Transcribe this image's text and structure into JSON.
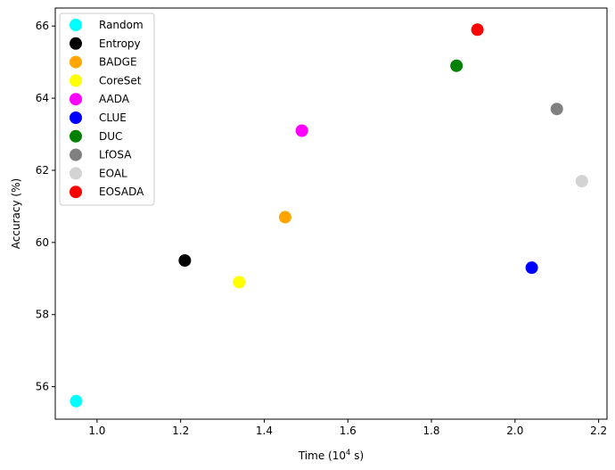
{
  "chart_data": {
    "type": "scatter",
    "title": "",
    "xlabel_prefix": "Time (10",
    "xlabel_sup": "4",
    "xlabel_suffix": " s)",
    "ylabel": "Accuracy (%)",
    "xlim": [
      0.9,
      2.22
    ],
    "ylim": [
      55.1,
      66.5
    ],
    "xticks": [
      1.0,
      1.2,
      1.4,
      1.6,
      1.8,
      2.0,
      2.2
    ],
    "xtick_labels": [
      "1.0",
      "1.2",
      "1.4",
      "1.6",
      "1.8",
      "2.0",
      "2.2"
    ],
    "yticks": [
      56,
      58,
      60,
      62,
      64,
      66
    ],
    "ytick_labels": [
      "56",
      "58",
      "60",
      "62",
      "64",
      "66"
    ],
    "grid": false,
    "legend_position": "top-left",
    "series": [
      {
        "name": "Random",
        "color": "#00ffff",
        "x": 0.95,
        "y": 55.6
      },
      {
        "name": "Entropy",
        "color": "#000000",
        "x": 1.21,
        "y": 59.5
      },
      {
        "name": "BADGE",
        "color": "#ffa500",
        "x": 1.45,
        "y": 60.7
      },
      {
        "name": "CoreSet",
        "color": "#ffff00",
        "x": 1.34,
        "y": 58.9
      },
      {
        "name": "AADA",
        "color": "#ff00ff",
        "x": 1.49,
        "y": 63.1
      },
      {
        "name": "CLUE",
        "color": "#0000ff",
        "x": 2.04,
        "y": 59.3
      },
      {
        "name": "DUC",
        "color": "#008000",
        "x": 1.86,
        "y": 64.9
      },
      {
        "name": "LfOSA",
        "color": "#808080",
        "x": 2.1,
        "y": 63.7
      },
      {
        "name": "EOAL",
        "color": "#d3d3d3",
        "x": 2.16,
        "y": 61.7
      },
      {
        "name": "EOSADA",
        "color": "#ff0000",
        "x": 1.91,
        "y": 65.9
      }
    ]
  }
}
